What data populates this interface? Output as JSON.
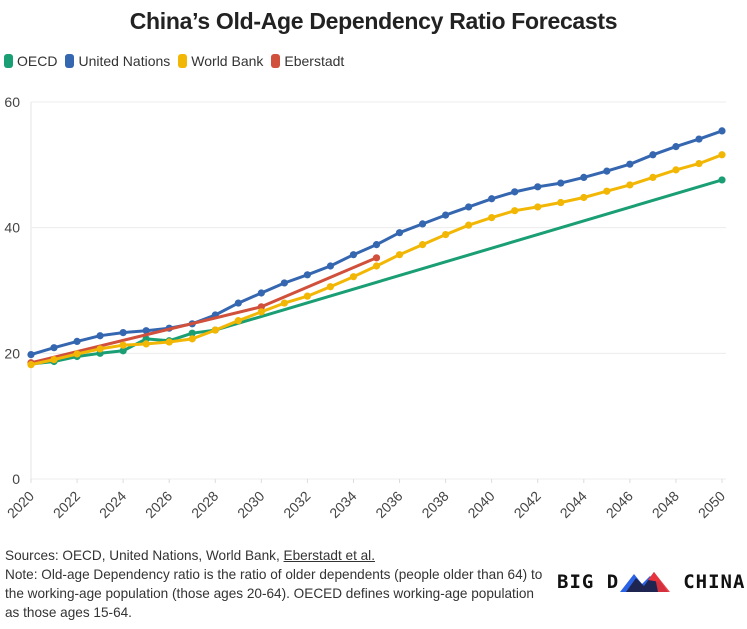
{
  "title": "China’s Old-Age Dependency Ratio Forecasts",
  "legend": [
    {
      "name": "OECD",
      "color": "#1a9e74"
    },
    {
      "name": "United Nations",
      "color": "#3566b0"
    },
    {
      "name": "World Bank",
      "color": "#f2b705"
    },
    {
      "name": "Eberstadt",
      "color": "#d1503b"
    }
  ],
  "footer": {
    "sources_prefix": "Sources: OECD, United Nations, World Bank, ",
    "sources_link": "Eberstadt et al.",
    "note": "Note: Old-age Dependency ratio is the ratio of older dependents (people older than 64) to the working-age population (those ages 20-64). OECED defines working-age population as those ages 15-64."
  },
  "logo": {
    "left": "BIG D",
    "right": "CHINA"
  },
  "chart_data": {
    "type": "line",
    "title": "China’s Old-Age Dependency Ratio Forecasts",
    "xlabel": "",
    "ylabel": "",
    "xlim": [
      2020,
      2050
    ],
    "ylim": [
      0,
      60
    ],
    "yticks": [
      0,
      20,
      40,
      60
    ],
    "xticks": [
      2020,
      2022,
      2024,
      2026,
      2028,
      2030,
      2032,
      2034,
      2036,
      2038,
      2040,
      2042,
      2044,
      2046,
      2048,
      2050
    ],
    "grid": "horizontal",
    "legend_position": "top-left",
    "series": [
      {
        "name": "OECD",
        "color": "#1a9e74",
        "x": [
          2020,
          2021,
          2022,
          2023,
          2024,
          2025,
          2026,
          2027,
          2028,
          2050
        ],
        "y": [
          18.3,
          18.7,
          19.5,
          20.0,
          20.4,
          22.3,
          22.0,
          23.2,
          23.7,
          47.6
        ],
        "markers": [
          true,
          true,
          true,
          true,
          true,
          true,
          true,
          true,
          true,
          true
        ]
      },
      {
        "name": "United Nations",
        "color": "#3566b0",
        "x": [
          2020,
          2021,
          2022,
          2023,
          2024,
          2025,
          2026,
          2027,
          2028,
          2029,
          2030,
          2031,
          2032,
          2033,
          2034,
          2035,
          2036,
          2037,
          2038,
          2039,
          2040,
          2041,
          2042,
          2043,
          2044,
          2045,
          2046,
          2047,
          2048,
          2049,
          2050
        ],
        "y": [
          19.8,
          20.9,
          21.9,
          22.8,
          23.3,
          23.6,
          24.0,
          24.7,
          26.1,
          28.0,
          29.6,
          31.2,
          32.5,
          33.9,
          35.7,
          37.3,
          39.2,
          40.6,
          42.0,
          43.3,
          44.6,
          45.7,
          46.5,
          47.1,
          48.0,
          49.0,
          50.1,
          51.6,
          52.9,
          54.1,
          55.4
        ]
      },
      {
        "name": "World Bank",
        "color": "#f2b705",
        "x": [
          2020,
          2021,
          2022,
          2023,
          2024,
          2025,
          2026,
          2027,
          2028,
          2029,
          2030,
          2031,
          2032,
          2033,
          2034,
          2035,
          2036,
          2037,
          2038,
          2039,
          2040,
          2041,
          2042,
          2043,
          2044,
          2045,
          2046,
          2047,
          2048,
          2049,
          2050
        ],
        "y": [
          18.2,
          19.0,
          19.9,
          20.7,
          21.3,
          21.5,
          21.8,
          22.3,
          23.7,
          25.2,
          26.6,
          28.0,
          29.1,
          30.6,
          32.2,
          33.9,
          35.7,
          37.3,
          38.9,
          40.4,
          41.6,
          42.7,
          43.3,
          44.0,
          44.8,
          45.8,
          46.8,
          48.0,
          49.2,
          50.2,
          51.6
        ]
      },
      {
        "name": "Eberstadt",
        "color": "#d1503b",
        "x": [
          2020,
          2030,
          2035
        ],
        "y": [
          18.5,
          27.4,
          35.2
        ]
      }
    ]
  }
}
